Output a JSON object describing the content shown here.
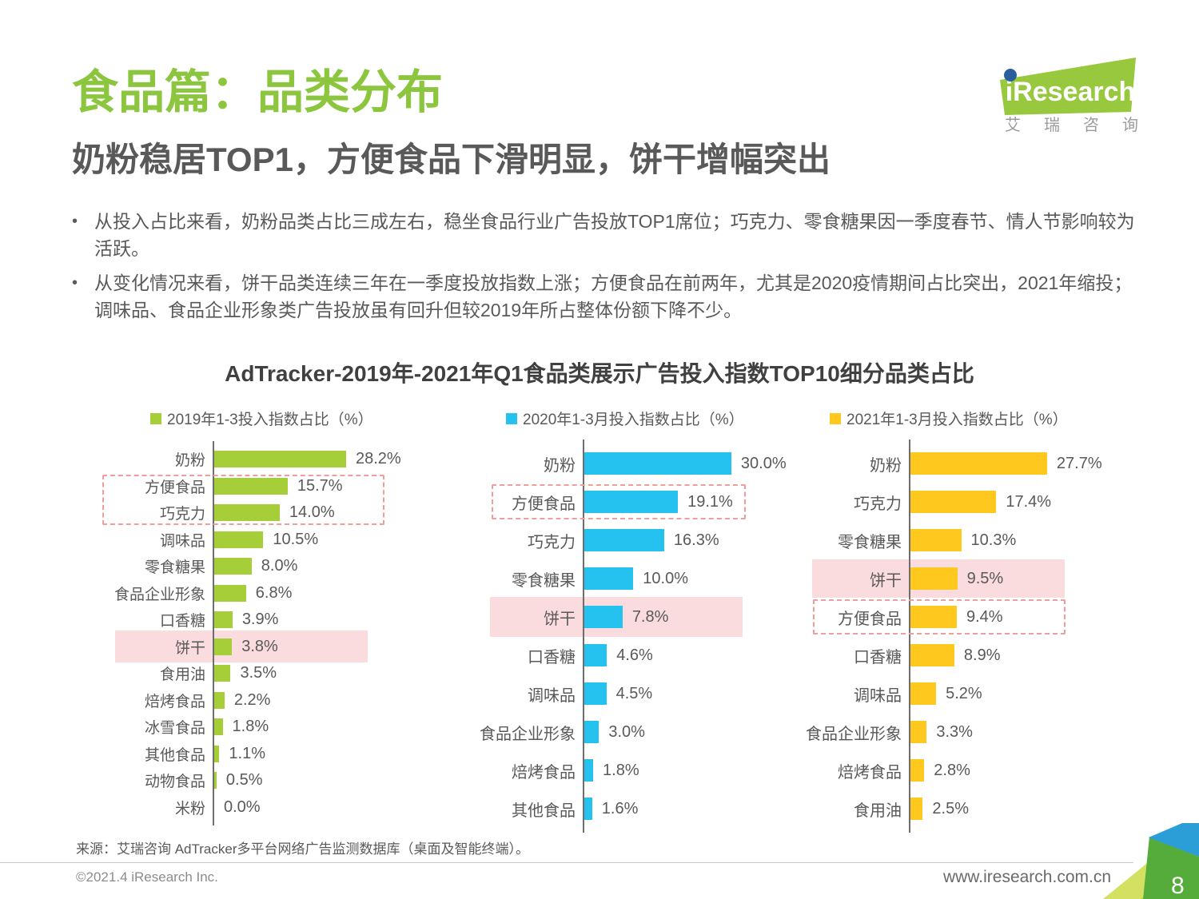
{
  "page": {
    "title": "食品篇：品类分布",
    "subtitle": "奶粉稳居TOP1，方便食品下滑明显，饼干增幅突出",
    "bullets": [
      "从投入占比来看，奶粉品类占比三成左右，稳坐食品行业广告投放TOP1席位；巧克力、零食糖果因一季度春节、情人节影响较为活跃。",
      "从变化情况来看，饼干品类连续三年在一季度投放指数上涨；方便食品在前两年，尤其是2020疫情期间占比突出，2021年缩投；调味品、食品企业形象类广告投放虽有回升但较2019年所占整体份额下降不少。"
    ],
    "chart_title": "AdTracker-2019年-2021年Q1食品类展示广告投入指数TOP10细分品类占比",
    "source": "来源：艾瑞咨询 AdTracker多平台网络广告监测数据库（桌面及智能终端）。",
    "footer": {
      "copyright": "©2021.4 iResearch Inc.",
      "website": "www.iresearch.com.cn",
      "page_number": "8"
    },
    "logo": {
      "brand": "iResearch",
      "brand_cn": "艾瑞咨询"
    }
  },
  "colors": {
    "title_green": "#8cc63f",
    "series_2019_green": "#a6ce39",
    "series_2020_blue": "#25c2ef",
    "series_2021_yellow": "#ffc81e",
    "highlight_pink": "#fadbde",
    "dashed_red": "#f09e9b"
  },
  "chart_data": [
    {
      "type": "bar",
      "orientation": "horizontal",
      "legend": "2019年1-3投入指数占比（%）",
      "series_color": "#a6ce39",
      "categories": [
        "奶粉",
        "方便食品",
        "巧克力",
        "调味品",
        "零食糖果",
        "食品企业形象",
        "口香糖",
        "饼干",
        "食用油",
        "焙烤食品",
        "冰雪食品",
        "其他食品",
        "动物食品",
        "米粉"
      ],
      "values": [
        28.2,
        15.7,
        14.0,
        10.5,
        8.0,
        6.8,
        3.9,
        3.8,
        3.5,
        2.2,
        1.8,
        1.1,
        0.5,
        0.0
      ],
      "value_suffix": "%",
      "xlim": [
        0,
        32
      ],
      "grid": false,
      "pink_band_category": "饼干",
      "dashed_box_categories": [
        "方便食品",
        "巧克力"
      ]
    },
    {
      "type": "bar",
      "orientation": "horizontal",
      "legend": "2020年1-3月投入指数占比（%）",
      "series_color": "#25c2ef",
      "categories": [
        "奶粉",
        "方便食品",
        "巧克力",
        "零食糖果",
        "饼干",
        "口香糖",
        "调味品",
        "食品企业形象",
        "焙烤食品",
        "其他食品"
      ],
      "values": [
        30.0,
        19.1,
        16.3,
        10.0,
        7.8,
        4.6,
        4.5,
        3.0,
        1.8,
        1.6
      ],
      "value_suffix": "%",
      "xlim": [
        0,
        32
      ],
      "grid": false,
      "pink_band_category": "饼干",
      "dashed_box_categories": [
        "方便食品"
      ]
    },
    {
      "type": "bar",
      "orientation": "horizontal",
      "legend": "2021年1-3月投入指数占比（%）",
      "series_color": "#ffc81e",
      "categories": [
        "奶粉",
        "巧克力",
        "零食糖果",
        "饼干",
        "方便食品",
        "口香糖",
        "调味品",
        "食品企业形象",
        "焙烤食品",
        "食用油"
      ],
      "values": [
        27.7,
        17.4,
        10.3,
        9.5,
        9.4,
        8.9,
        5.2,
        3.3,
        2.8,
        2.5
      ],
      "value_suffix": "%",
      "xlim": [
        0,
        32
      ],
      "grid": false,
      "pink_band_category": "饼干",
      "dashed_box_categories": [
        "方便食品"
      ]
    }
  ]
}
